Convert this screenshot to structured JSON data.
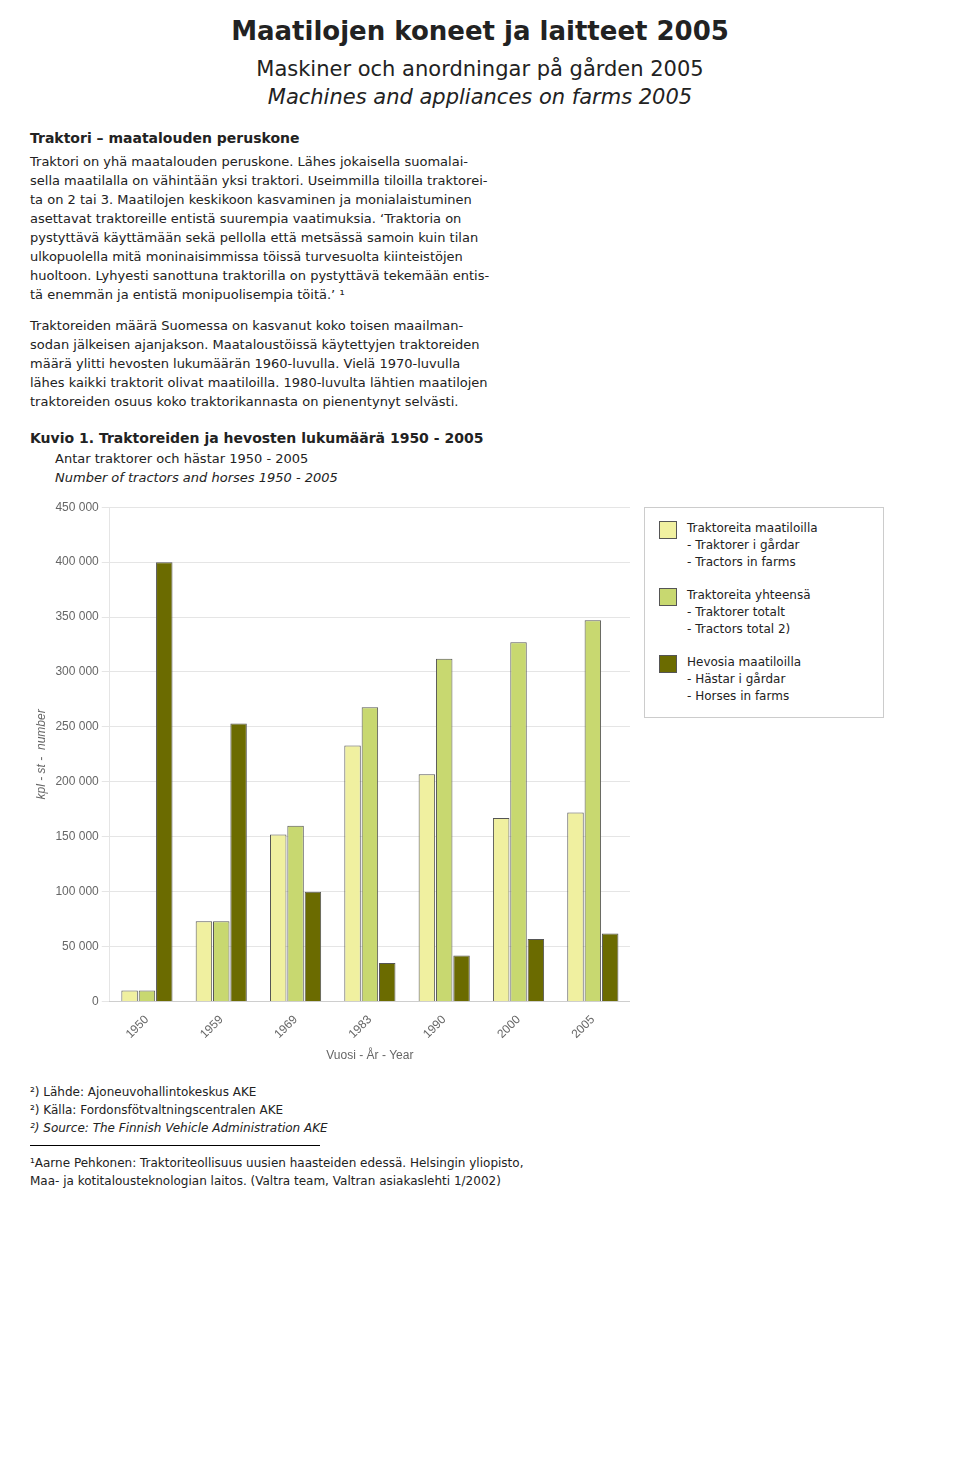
{
  "title": [
    "Maatilojen koneet ja laitteet 2005",
    "Maskiner och anordningar på gården 2005",
    "Machines and appliances on farms 2005"
  ],
  "section_title": "Traktori – maatalouden peruskone",
  "body_text1_lines": [
    "Traktori on yhä maatalouden peruskone. Lähes jokaisella suomalai-",
    "sella maatilalla on vähintään yksi traktori. Useimmilla tiloilla traktorei-",
    "ta on 2 tai 3. Maatilojen keskikoon kasvaminen ja monialaistuminen",
    "asettavat traktoreille entistä suurempia vaatimuksia. ‘Traktoria on",
    "pystyttävä käyttämään sekä pellolla että metsässä samoin kuin tilan",
    "ulkopuolella mitä moninaisimmissa töissä turvesuolta kiinteistöjen",
    "huoltoon. Lyhyesti sanottuna traktorilla on pystyttävä tekemään entis-",
    "tä enemmän ja entistä monipuolisempia töitä.’ ¹"
  ],
  "body_text2_lines": [
    "Traktoreiden määrä Suomessa on kasvanut koko toisen maailman-",
    "sodan jälkeisen ajanjakson. Maataloustöissä käytettyjen traktoreiden",
    "määrä ylitti hevosten lukumäärän 1960-luvulla. Vielä 1970-luvulla",
    "lähes kaikki traktorit olivat maatiloilla. 1980-luvulta lähtien maatilojen",
    "traktoreiden osuus koko traktorikannasta on pienentynyt selvästi."
  ],
  "footnotes": [
    "²) Lähde: Ajoneuvohallintokeskus AKE",
    "²) Källa: Fordonsfötvaltningscentralen AKE",
    "²) Source: The Finnish Vehicle Administration AKE"
  ],
  "fn1": "¹Aarne Pehkonen: Traktoriteollisuus uusien haasteiden edessä. Helsingin yliopisto,\nMaa- ja kotitalousteknologian laitos. (Valtra team, Valtran asiakaslehti 1/2002)",
  "chart_data": {
    "type": "bar",
    "title": [
      "Kuvio 1. Traktoreiden ja hevosten lukumäärä  1950 - 2005",
      "Antar traktorer och hästar 1950 - 2005",
      "Number of tractors and horses 1950 - 2005"
    ],
    "xlabel": "Vuosi - År - Year",
    "ylabel": "kpl - st -  number",
    "categories": [
      "1950",
      "1959",
      "1969",
      "1983",
      "1990",
      "2000",
      "2005"
    ],
    "series": [
      {
        "name": "Traktoreita maatiloilla\n- Traktorer i gårdar\n- Tractors in farms",
        "color": "#f0f0a0",
        "values": [
          10000,
          73000,
          152000,
          233000,
          207000,
          167000,
          172000
        ]
      },
      {
        "name": "Traktoreita yhteensä\n- Traktorer totalt\n- Tractors total 2)",
        "color": "#c8d870",
        "values": [
          10000,
          73000,
          160000,
          268000,
          312000,
          327000,
          347000
        ]
      },
      {
        "name": "Hevosia maatiloilla\n- Hästar i gårdar\n- Horses in farms",
        "color": "#6b6b00",
        "values": [
          400000,
          253000,
          100000,
          35000,
          42000,
          57000,
          62000
        ]
      }
    ],
    "ylim": [
      0,
      450000
    ],
    "yticks": [
      0,
      {
        "value": 50000,
        "label": "50 000"
      },
      {
        "value": 100000,
        "label": "100 000"
      },
      {
        "value": 150000,
        "label": "150 000"
      },
      {
        "value": 200000,
        "label": "200 000"
      },
      {
        "value": 250000,
        "label": "250 000"
      },
      {
        "value": 300000,
        "label": "300 000"
      },
      {
        "value": 350000,
        "label": "350 000"
      },
      {
        "value": 400000,
        "label": "400 000"
      },
      {
        "value": 450000,
        "label": "450 000"
      }
    ],
    "grid": true,
    "legend": "right"
  }
}
